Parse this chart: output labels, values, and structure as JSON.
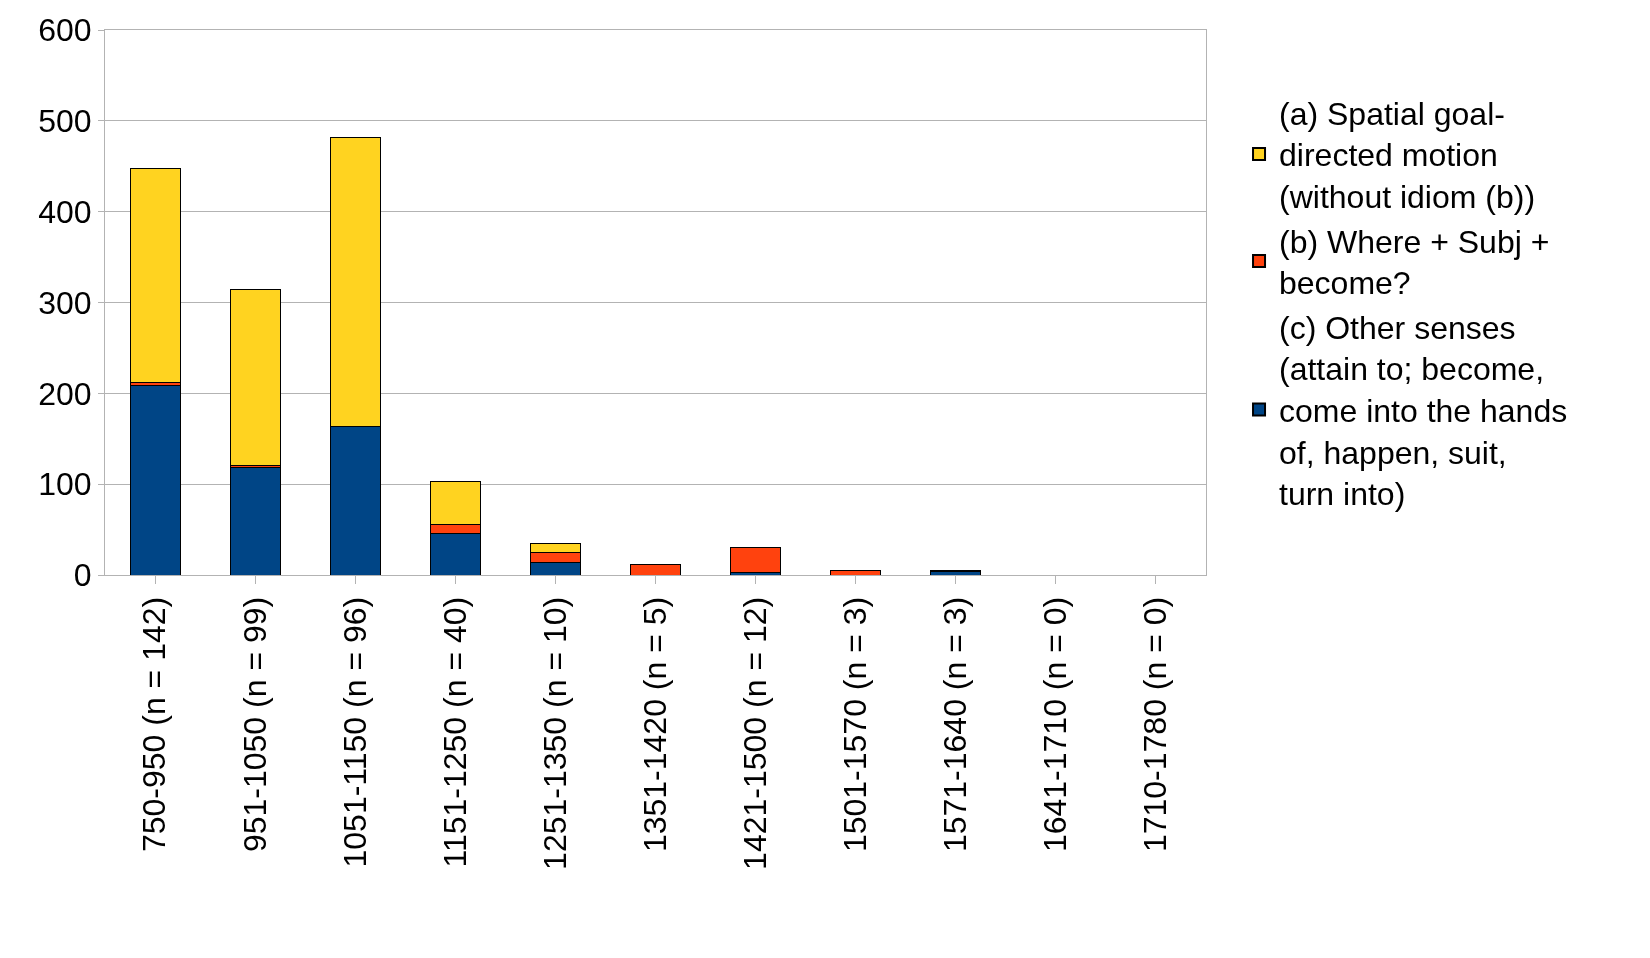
{
  "chart_data": {
    "type": "bar",
    "stacked": true,
    "categories": [
      "750-950 (n = 142)",
      "951-1050 (n = 99)",
      "1051-1150 (n = 96)",
      "1151-1250 (n = 40)",
      "1251-1350 (n = 10)",
      "1351-1420 (n = 5)",
      "1421-1500 (n = 12)",
      "1501-1570 (n = 3)",
      "1571-1640 (n = 3)",
      "1641-1710 (n = 0)",
      "1710-1780 (n = 0)"
    ],
    "series": [
      {
        "name": "(c) Other senses (attain to; become, come into the hands of, happen, suit, turn into)",
        "color": "#004586",
        "values": [
          209,
          118,
          164,
          46,
          14,
          0,
          3,
          0,
          4,
          0,
          0
        ]
      },
      {
        "name": "(b) Where + Subj + become?",
        "color": "#ff420e",
        "values": [
          3,
          3,
          0,
          10,
          11,
          12,
          27,
          5,
          1,
          0,
          0
        ]
      },
      {
        "name": "(a) Spatial goal-directed motion (without idiom (b))",
        "color": "#ffd320",
        "values": [
          236,
          193,
          318,
          47,
          10,
          0,
          0,
          0,
          0,
          0,
          0
        ]
      }
    ],
    "ylim": [
      0,
      600
    ],
    "yticks": [
      0,
      100,
      200,
      300,
      400,
      500,
      600
    ],
    "grid": "y",
    "legend": "right"
  }
}
